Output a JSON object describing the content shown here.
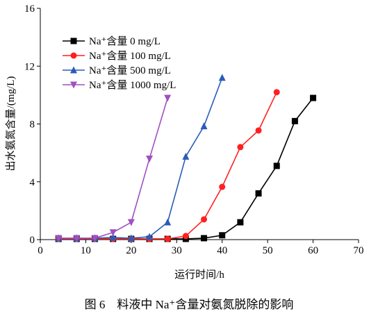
{
  "chart_data": {
    "type": "line",
    "caption": "图 6　料液中 Na⁺含量对氨氮脱除的影响",
    "x_label": "运行时间/h",
    "y_label": "出水氨氮含量/(mg/L)",
    "xlim": [
      0,
      70
    ],
    "xticks": [
      0,
      10,
      20,
      30,
      40,
      50,
      60,
      70
    ],
    "ylim": [
      0,
      16
    ],
    "yticks": [
      0,
      4,
      8,
      12,
      16
    ],
    "legend": "upper-left",
    "series": [
      {
        "name": "Na⁺含量 0 mg/L",
        "color": "#000000",
        "marker": "square",
        "x": [
          4,
          8,
          12,
          16,
          20,
          24,
          28,
          32,
          36,
          40,
          44,
          48,
          52,
          56,
          60
        ],
        "values": [
          0.05,
          0.05,
          0.05,
          0.05,
          0.05,
          0.05,
          0.05,
          0.05,
          0.1,
          0.3,
          1.2,
          3.2,
          5.1,
          8.2,
          9.8
        ]
      },
      {
        "name": "Na⁺含量 100 mg/L",
        "color": "#ff2020",
        "marker": "circle",
        "x": [
          4,
          8,
          12,
          16,
          20,
          24,
          28,
          32,
          36,
          40,
          44,
          48,
          52
        ],
        "values": [
          0.05,
          0.05,
          0.05,
          0.05,
          0.05,
          0.05,
          0.05,
          0.25,
          1.4,
          3.65,
          6.4,
          7.55,
          10.2
        ]
      },
      {
        "name": "Na⁺含量 500 mg/L",
        "color": "#2a5cb8",
        "marker": "triangle-up",
        "x": [
          4,
          8,
          12,
          16,
          20,
          24,
          28,
          32,
          36,
          40
        ],
        "values": [
          0.1,
          0.1,
          0.1,
          0.15,
          0.1,
          0.2,
          1.2,
          5.75,
          7.85,
          11.2
        ]
      },
      {
        "name": "Na⁺含量 1000 mg/L",
        "color": "#a050c0",
        "marker": "triangle-down",
        "x": [
          4,
          8,
          12,
          16,
          20,
          24,
          28
        ],
        "values": [
          0.1,
          0.1,
          0.1,
          0.5,
          1.2,
          5.6,
          9.8
        ]
      }
    ]
  }
}
